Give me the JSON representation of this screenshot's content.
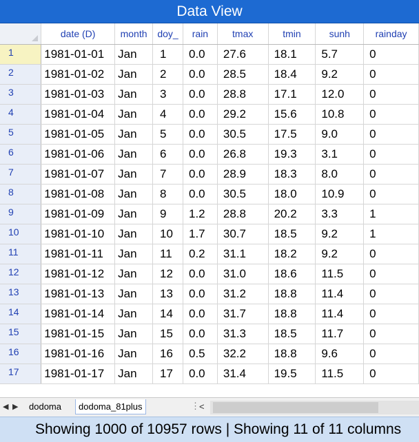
{
  "window": {
    "title": "Data View"
  },
  "table": {
    "columns": [
      "date (D)",
      "month",
      "doy_",
      "rain",
      "tmax",
      "tmin",
      "sunh",
      "rainday"
    ],
    "rows": [
      {
        "n": "1",
        "date": "1981-01-01",
        "month": "Jan",
        "doy": "1",
        "rain": "0.0",
        "tmax": "27.6",
        "tmin": "18.1",
        "sunh": "5.7",
        "rainday": "0"
      },
      {
        "n": "2",
        "date": "1981-01-02",
        "month": "Jan",
        "doy": "2",
        "rain": "0.0",
        "tmax": "28.5",
        "tmin": "18.4",
        "sunh": "9.2",
        "rainday": "0"
      },
      {
        "n": "3",
        "date": "1981-01-03",
        "month": "Jan",
        "doy": "3",
        "rain": "0.0",
        "tmax": "28.8",
        "tmin": "17.1",
        "sunh": "12.0",
        "rainday": "0"
      },
      {
        "n": "4",
        "date": "1981-01-04",
        "month": "Jan",
        "doy": "4",
        "rain": "0.0",
        "tmax": "29.2",
        "tmin": "15.6",
        "sunh": "10.8",
        "rainday": "0"
      },
      {
        "n": "5",
        "date": "1981-01-05",
        "month": "Jan",
        "doy": "5",
        "rain": "0.0",
        "tmax": "30.5",
        "tmin": "17.5",
        "sunh": "9.0",
        "rainday": "0"
      },
      {
        "n": "6",
        "date": "1981-01-06",
        "month": "Jan",
        "doy": "6",
        "rain": "0.0",
        "tmax": "26.8",
        "tmin": "19.3",
        "sunh": "3.1",
        "rainday": "0"
      },
      {
        "n": "7",
        "date": "1981-01-07",
        "month": "Jan",
        "doy": "7",
        "rain": "0.0",
        "tmax": "28.9",
        "tmin": "18.3",
        "sunh": "8.0",
        "rainday": "0"
      },
      {
        "n": "8",
        "date": "1981-01-08",
        "month": "Jan",
        "doy": "8",
        "rain": "0.0",
        "tmax": "30.5",
        "tmin": "18.0",
        "sunh": "10.9",
        "rainday": "0"
      },
      {
        "n": "9",
        "date": "1981-01-09",
        "month": "Jan",
        "doy": "9",
        "rain": "1.2",
        "tmax": "28.8",
        "tmin": "20.2",
        "sunh": "3.3",
        "rainday": "1"
      },
      {
        "n": "10",
        "date": "1981-01-10",
        "month": "Jan",
        "doy": "10",
        "rain": "1.7",
        "tmax": "30.7",
        "tmin": "18.5",
        "sunh": "9.2",
        "rainday": "1"
      },
      {
        "n": "11",
        "date": "1981-01-11",
        "month": "Jan",
        "doy": "11",
        "rain": "0.2",
        "tmax": "31.1",
        "tmin": "18.2",
        "sunh": "9.2",
        "rainday": "0"
      },
      {
        "n": "12",
        "date": "1981-01-12",
        "month": "Jan",
        "doy": "12",
        "rain": "0.0",
        "tmax": "31.0",
        "tmin": "18.6",
        "sunh": "11.5",
        "rainday": "0"
      },
      {
        "n": "13",
        "date": "1981-01-13",
        "month": "Jan",
        "doy": "13",
        "rain": "0.0",
        "tmax": "31.2",
        "tmin": "18.8",
        "sunh": "11.4",
        "rainday": "0"
      },
      {
        "n": "14",
        "date": "1981-01-14",
        "month": "Jan",
        "doy": "14",
        "rain": "0.0",
        "tmax": "31.7",
        "tmin": "18.8",
        "sunh": "11.4",
        "rainday": "0"
      },
      {
        "n": "15",
        "date": "1981-01-15",
        "month": "Jan",
        "doy": "15",
        "rain": "0.0",
        "tmax": "31.3",
        "tmin": "18.5",
        "sunh": "11.7",
        "rainday": "0"
      },
      {
        "n": "16",
        "date": "1981-01-16",
        "month": "Jan",
        "doy": "16",
        "rain": "0.5",
        "tmax": "32.2",
        "tmin": "18.8",
        "sunh": "9.6",
        "rainday": "0"
      },
      {
        "n": "17",
        "date": "1981-01-17",
        "month": "Jan",
        "doy": "17",
        "rain": "0.0",
        "tmax": "31.4",
        "tmin": "19.5",
        "sunh": "11.5",
        "rainday": "0"
      }
    ]
  },
  "sheets": {
    "tabs": [
      "dodoma",
      "dodoma_81plus"
    ],
    "active_index": 1,
    "more": "⋮",
    "scroll_left": "<"
  },
  "status": {
    "text": "Showing 1000 of 10957 rows | Showing 11 of 11 columns"
  },
  "colors": {
    "title_bg": "#1d6ad2",
    "header_text": "#1f3fb2",
    "status_bg": "#cfe0f4",
    "active_row": "#f7f3c2"
  }
}
